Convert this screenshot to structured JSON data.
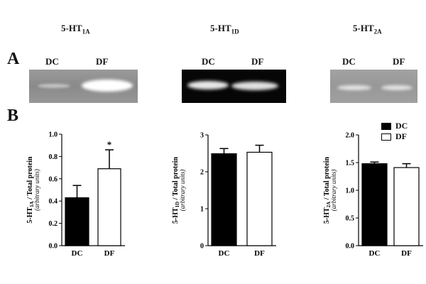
{
  "panel_a_letter": "A",
  "panel_b_letter": "B",
  "titles": [
    {
      "main": "5-HT",
      "sub": "1A"
    },
    {
      "main": "5-HT",
      "sub": "1D"
    },
    {
      "main": "5-HT",
      "sub": "2A"
    }
  ],
  "lane_labels": [
    "DC",
    "DF"
  ],
  "legend": [
    {
      "label": "DC",
      "color": "#000000"
    },
    {
      "label": "DF",
      "color": "#ffffff"
    }
  ],
  "colors": {
    "dc_fill": "#000000",
    "df_fill": "#ffffff",
    "outline": "#000000"
  },
  "chart_data": [
    {
      "type": "bar",
      "title": "5-HT1A",
      "ylabel_main": "5-HT1A / Total protein",
      "ylabel_sub": "(arbitrary units)",
      "ylabel_parts": [
        "5-HT",
        "1A",
        " / Total protein"
      ],
      "categories": [
        "DC",
        "DF"
      ],
      "values": [
        0.43,
        0.69
      ],
      "errors": [
        0.11,
        0.17
      ],
      "ylim": [
        0,
        1.0
      ],
      "yticks": [
        "0.0",
        "0.2",
        "0.4",
        "0.6",
        "0.8",
        "1.0"
      ],
      "ytick_values": [
        0,
        0.2,
        0.4,
        0.6,
        0.8,
        1.0
      ],
      "annotations": [
        "",
        "*"
      ]
    },
    {
      "type": "bar",
      "title": "5-HT1D",
      "ylabel_main": "5-HT1D / Total protein",
      "ylabel_sub": "(arbitrary units)",
      "ylabel_parts": [
        "5-HT",
        "1D",
        " / Total protein"
      ],
      "categories": [
        "DC",
        "DF"
      ],
      "values": [
        2.49,
        2.53
      ],
      "errors": [
        0.14,
        0.19
      ],
      "ylim": [
        0,
        3
      ],
      "yticks": [
        "0",
        "1",
        "2",
        "3"
      ],
      "ytick_values": [
        0,
        1,
        2,
        3
      ],
      "annotations": [
        "",
        ""
      ]
    },
    {
      "type": "bar",
      "title": "5-HT2A",
      "ylabel_main": "5-HT2A / Total protein",
      "ylabel_sub": "(arbitrary units)",
      "ylabel_parts": [
        "5-HT",
        "2A",
        " / Total protein"
      ],
      "categories": [
        "DC",
        "DF"
      ],
      "values": [
        1.48,
        1.41
      ],
      "errors": [
        0.03,
        0.07
      ],
      "ylim": [
        0,
        2.0
      ],
      "yticks": [
        "0.0",
        "0.5",
        "1.0",
        "1.5",
        "2.0"
      ],
      "ytick_values": [
        0,
        0.5,
        1.0,
        1.5,
        2.0
      ],
      "annotations": [
        "",
        ""
      ]
    }
  ]
}
